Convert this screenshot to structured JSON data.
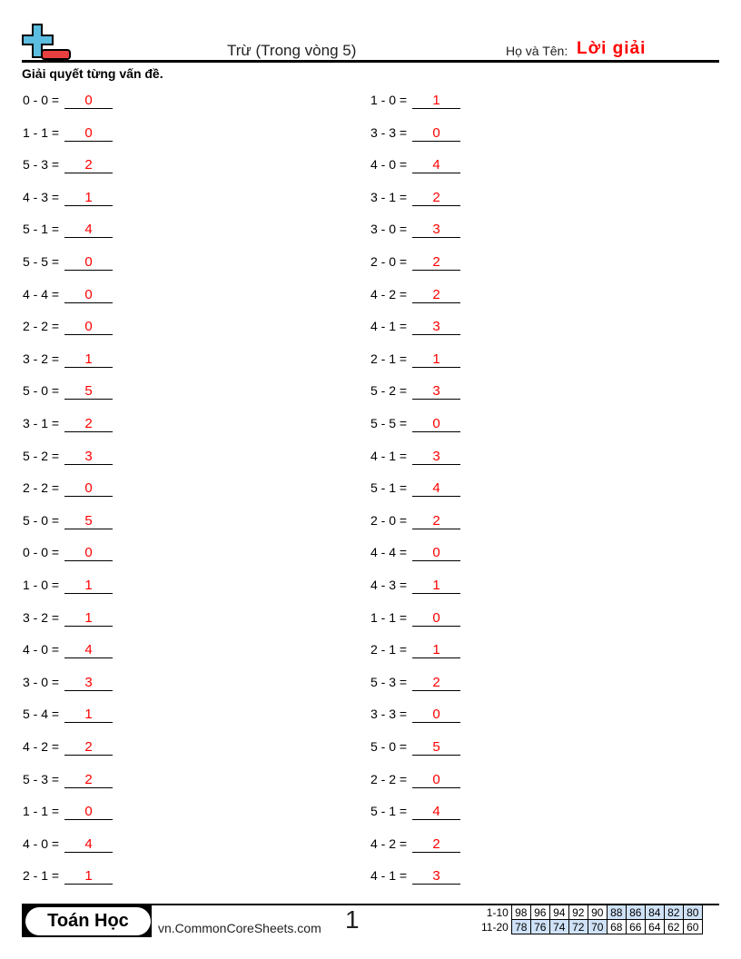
{
  "header": {
    "title": "Trừ (Trong vòng 5)",
    "name_label": "Họ và Tên:",
    "name_value": "Lời giải"
  },
  "instructions": "Giải quyết từng vấn đề.",
  "colors": {
    "answer": "#ff0000",
    "logo_plus": "#5bbde0",
    "logo_minus": "#e84040",
    "score_highlight": "#cfe2f7"
  },
  "problems_left": [
    {
      "q": "0 - 0 =",
      "a": "0"
    },
    {
      "q": "1 - 1 =",
      "a": "0"
    },
    {
      "q": "5 - 3 =",
      "a": "2"
    },
    {
      "q": "4 - 3 =",
      "a": "1"
    },
    {
      "q": "5 - 1 =",
      "a": "4"
    },
    {
      "q": "5 - 5 =",
      "a": "0"
    },
    {
      "q": "4 - 4 =",
      "a": "0"
    },
    {
      "q": "2 - 2 =",
      "a": "0"
    },
    {
      "q": "3 - 2 =",
      "a": "1"
    },
    {
      "q": "5 - 0 =",
      "a": "5"
    },
    {
      "q": "3 - 1 =",
      "a": "2"
    },
    {
      "q": "5 - 2 =",
      "a": "3"
    },
    {
      "q": "2 - 2 =",
      "a": "0"
    },
    {
      "q": "5 - 0 =",
      "a": "5"
    },
    {
      "q": "0 - 0 =",
      "a": "0"
    },
    {
      "q": "1 - 0 =",
      "a": "1"
    },
    {
      "q": "3 - 2 =",
      "a": "1"
    },
    {
      "q": "4 - 0 =",
      "a": "4"
    },
    {
      "q": "3 - 0 =",
      "a": "3"
    },
    {
      "q": "5 - 4 =",
      "a": "1"
    },
    {
      "q": "4 - 2 =",
      "a": "2"
    },
    {
      "q": "5 - 3 =",
      "a": "2"
    },
    {
      "q": "1 - 1 =",
      "a": "0"
    },
    {
      "q": "4 - 0 =",
      "a": "4"
    },
    {
      "q": "2 - 1 =",
      "a": "1"
    }
  ],
  "problems_right": [
    {
      "q": "1 - 0 =",
      "a": "1"
    },
    {
      "q": "3 - 3 =",
      "a": "0"
    },
    {
      "q": "4 - 0 =",
      "a": "4"
    },
    {
      "q": "3 - 1 =",
      "a": "2"
    },
    {
      "q": "3 - 0 =",
      "a": "3"
    },
    {
      "q": "2 - 0 =",
      "a": "2"
    },
    {
      "q": "4 - 2 =",
      "a": "2"
    },
    {
      "q": "4 - 1 =",
      "a": "3"
    },
    {
      "q": "2 - 1 =",
      "a": "1"
    },
    {
      "q": "5 - 2 =",
      "a": "3"
    },
    {
      "q": "5 - 5 =",
      "a": "0"
    },
    {
      "q": "4 - 1 =",
      "a": "3"
    },
    {
      "q": "5 - 1 =",
      "a": "4"
    },
    {
      "q": "2 - 0 =",
      "a": "2"
    },
    {
      "q": "4 - 4 =",
      "a": "0"
    },
    {
      "q": "4 - 3 =",
      "a": "1"
    },
    {
      "q": "1 - 1 =",
      "a": "0"
    },
    {
      "q": "2 - 1 =",
      "a": "1"
    },
    {
      "q": "5 - 3 =",
      "a": "2"
    },
    {
      "q": "3 - 3 =",
      "a": "0"
    },
    {
      "q": "5 - 0 =",
      "a": "5"
    },
    {
      "q": "2 - 2 =",
      "a": "0"
    },
    {
      "q": "5 - 1 =",
      "a": "4"
    },
    {
      "q": "4 - 2 =",
      "a": "2"
    },
    {
      "q": "4 - 1 =",
      "a": "3"
    }
  ],
  "footer": {
    "brand": "Toán Học",
    "site": "vn.CommonCoreSheets.com",
    "page": "1",
    "score_rows": [
      {
        "label": "1-10",
        "values": [
          "98",
          "96",
          "94",
          "92",
          "90",
          "88",
          "86",
          "84",
          "82",
          "80"
        ],
        "highlighted": [
          false,
          false,
          false,
          false,
          false,
          true,
          true,
          true,
          true,
          true
        ]
      },
      {
        "label": "11-20",
        "values": [
          "78",
          "76",
          "74",
          "72",
          "70",
          "68",
          "66",
          "64",
          "62",
          "60"
        ],
        "highlighted": [
          true,
          true,
          true,
          true,
          true,
          false,
          false,
          false,
          false,
          false
        ]
      }
    ]
  }
}
